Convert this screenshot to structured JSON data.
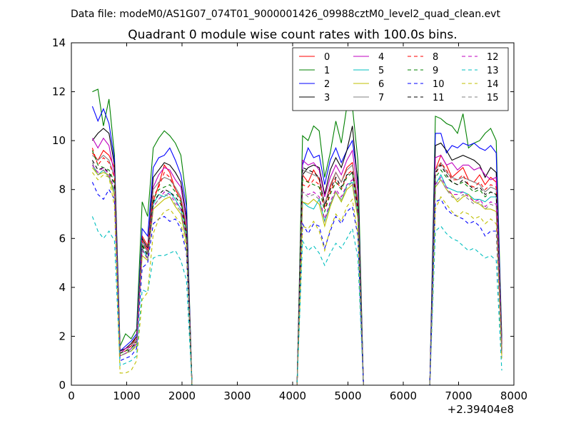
{
  "header": "Data file: modeM0/AS1G07_074T01_9000001426_09988cztM0_level2_quad_clean.evt",
  "chart_data": {
    "type": "line",
    "title": "Quadrant 0 module wise count rates with 100.0s bins.",
    "xlabel": "",
    "ylabel": "",
    "x_offset_label": "+2.39404e8",
    "xlim": [
      0,
      8000
    ],
    "ylim": [
      0,
      14
    ],
    "x_ticks": [
      0,
      1000,
      2000,
      3000,
      4000,
      5000,
      6000,
      7000,
      8000
    ],
    "x_tick_labels": [
      "0",
      "1000",
      "2000",
      "3000",
      "4000",
      "5000",
      "6000",
      "7000",
      "8000"
    ],
    "y_ticks": [
      0,
      2,
      4,
      6,
      8,
      10,
      12,
      14
    ],
    "y_tick_labels": [
      "0",
      "2",
      "4",
      "6",
      "8",
      "10",
      "12",
      "14"
    ],
    "grid": false,
    "legend_position": "top-right",
    "x": [
      380,
      480,
      580,
      680,
      780,
      880,
      980,
      1080,
      1180,
      1280,
      1380,
      1480,
      1580,
      1680,
      1780,
      1880,
      1980,
      2080,
      2180,
      2280,
      4080,
      4180,
      4280,
      4380,
      4480,
      4580,
      4680,
      4780,
      4880,
      4980,
      5080,
      5180,
      5280,
      5380,
      6480,
      6580,
      6680,
      6780,
      6880,
      6980,
      7080,
      7180,
      7280,
      7380,
      7480,
      7580,
      7680,
      7780
    ],
    "series": [
      {
        "name": "0",
        "color": "#ff0000",
        "dash": "solid",
        "values": [
          9.5,
          9.2,
          9.6,
          9.4,
          8.9,
          1.3,
          1.5,
          1.6,
          2.0,
          6.1,
          5.7,
          7.5,
          8.2,
          9.0,
          8.7,
          8.0,
          7.6,
          6.5,
          0,
          0,
          0,
          8.6,
          8.3,
          8.8,
          8.4,
          7.4,
          8.1,
          8.7,
          8.3,
          8.9,
          9.1,
          7.5,
          0,
          0,
          0,
          8.8,
          9.4,
          9.0,
          8.5,
          8.7,
          8.9,
          8.4,
          8.3,
          8.6,
          8.2,
          8.5,
          8.3,
          1.6
        ]
      },
      {
        "name": "1",
        "color": "#008000",
        "dash": "solid",
        "values": [
          12.0,
          12.1,
          10.6,
          11.7,
          9.4,
          1.6,
          2.1,
          1.9,
          2.3,
          7.5,
          6.9,
          9.7,
          10.1,
          10.4,
          10.2,
          9.9,
          9.4,
          7.6,
          0,
          0,
          0,
          10.2,
          10.0,
          10.6,
          10.4,
          8.5,
          9.5,
          10.8,
          9.9,
          11.4,
          11.4,
          9.2,
          0,
          0,
          0,
          11.0,
          10.9,
          10.7,
          10.6,
          10.3,
          11.1,
          9.7,
          9.9,
          10.0,
          10.3,
          10.5,
          10.0,
          2.0
        ]
      },
      {
        "name": "2",
        "color": "#0000ff",
        "dash": "solid",
        "values": [
          11.4,
          10.8,
          11.3,
          10.7,
          9.2,
          1.4,
          1.6,
          1.8,
          2.1,
          6.4,
          6.1,
          8.9,
          9.3,
          9.4,
          9.7,
          9.2,
          8.6,
          7.3,
          0,
          0,
          0,
          9.0,
          9.7,
          9.3,
          9.4,
          8.2,
          9.2,
          9.7,
          9.1,
          9.6,
          10.0,
          8.4,
          0,
          0,
          0,
          10.3,
          10.3,
          9.5,
          9.8,
          9.7,
          9.9,
          9.8,
          9.9,
          9.7,
          9.6,
          9.8,
          9.5,
          1.8
        ]
      },
      {
        "name": "3",
        "color": "#000000",
        "dash": "solid",
        "values": [
          10.0,
          10.3,
          10.5,
          10.3,
          9.0,
          1.4,
          1.5,
          1.7,
          2.0,
          6.0,
          5.6,
          8.5,
          8.8,
          9.1,
          9.0,
          8.7,
          8.3,
          6.9,
          0,
          0,
          0,
          8.6,
          8.9,
          9.0,
          8.9,
          7.8,
          8.8,
          9.3,
          8.9,
          9.6,
          10.6,
          8.2,
          0,
          0,
          0,
          9.8,
          9.9,
          9.6,
          9.2,
          9.3,
          9.4,
          9.3,
          9.2,
          9.0,
          8.5,
          8.9,
          8.7,
          1.7
        ]
      },
      {
        "name": "4",
        "color": "#bf00bf",
        "dash": "solid",
        "values": [
          10.1,
          9.7,
          10.1,
          9.8,
          8.6,
          1.3,
          1.5,
          1.6,
          1.9,
          5.9,
          5.5,
          8.1,
          8.6,
          8.9,
          8.8,
          8.4,
          8.1,
          6.7,
          0,
          0,
          0,
          9.2,
          9.0,
          9.1,
          8.8,
          7.7,
          8.5,
          9.0,
          8.6,
          9.2,
          9.6,
          7.9,
          0,
          0,
          0,
          9.3,
          9.4,
          9.0,
          9.1,
          8.8,
          9.0,
          9.0,
          8.8,
          8.9,
          8.6,
          8.4,
          8.5,
          1.6
        ]
      },
      {
        "name": "5",
        "color": "#00bfbf",
        "dash": "solid",
        "values": [
          9.0,
          8.6,
          8.8,
          8.5,
          7.9,
          1.2,
          1.3,
          1.4,
          1.7,
          5.6,
          5.2,
          7.4,
          7.8,
          7.7,
          7.9,
          7.6,
          7.2,
          6.0,
          0,
          0,
          0,
          7.5,
          7.3,
          7.2,
          7.6,
          6.7,
          7.4,
          7.9,
          7.5,
          8.2,
          8.3,
          7.0,
          0,
          0,
          0,
          8.2,
          8.6,
          8.1,
          8.0,
          7.9,
          7.9,
          7.8,
          7.6,
          7.6,
          7.5,
          7.7,
          7.7,
          1.3
        ]
      },
      {
        "name": "6",
        "color": "#bfbf00",
        "dash": "solid",
        "values": [
          8.9,
          8.6,
          8.7,
          8.6,
          7.7,
          1.2,
          1.3,
          1.4,
          1.6,
          5.3,
          5.1,
          7.2,
          7.4,
          7.6,
          7.7,
          7.3,
          7.0,
          5.8,
          0,
          0,
          0,
          7.5,
          7.4,
          7.6,
          7.4,
          6.5,
          7.3,
          7.9,
          7.5,
          8.0,
          8.2,
          6.8,
          0,
          0,
          0,
          8.1,
          8.4,
          8.0,
          7.8,
          7.5,
          7.7,
          7.8,
          7.5,
          7.4,
          7.2,
          7.2,
          7.1,
          1.2
        ]
      },
      {
        "name": "7",
        "color": "#808080",
        "dash": "solid",
        "values": [
          9.4,
          9.2,
          9.4,
          9.2,
          8.5,
          1.3,
          1.4,
          1.6,
          1.9,
          5.9,
          5.4,
          8.0,
          8.3,
          8.5,
          8.4,
          8.1,
          7.7,
          6.5,
          0,
          0,
          0,
          8.8,
          8.7,
          8.6,
          8.5,
          7.4,
          8.2,
          8.7,
          8.3,
          8.8,
          9.0,
          7.6,
          0,
          0,
          0,
          8.8,
          9.1,
          8.7,
          8.5,
          8.4,
          8.5,
          8.4,
          8.3,
          8.2,
          7.9,
          8.1,
          8.0,
          1.5
        ]
      },
      {
        "name": "8",
        "color": "#ff0000",
        "dash": "dashed",
        "values": [
          9.7,
          9.0,
          9.3,
          9.1,
          8.5,
          1.3,
          1.4,
          1.6,
          1.8,
          5.9,
          5.5,
          7.7,
          8.1,
          8.7,
          8.5,
          8.0,
          7.6,
          6.3,
          0,
          0,
          0,
          8.2,
          8.1,
          8.4,
          8.2,
          7.2,
          7.9,
          8.4,
          8.0,
          8.6,
          8.8,
          7.4,
          0,
          0,
          0,
          8.6,
          9.1,
          8.8,
          8.4,
          8.4,
          8.6,
          8.2,
          8.1,
          8.3,
          8.0,
          8.2,
          8.1,
          1.5
        ]
      },
      {
        "name": "9",
        "color": "#008000",
        "dash": "dashed",
        "values": [
          9.6,
          9.0,
          8.9,
          8.8,
          8.3,
          1.3,
          1.4,
          1.5,
          1.8,
          5.8,
          5.3,
          7.6,
          8.0,
          8.1,
          8.2,
          7.9,
          7.5,
          6.3,
          0,
          0,
          0,
          8.4,
          8.3,
          8.2,
          8.1,
          7.1,
          7.8,
          8.3,
          8.0,
          8.5,
          8.7,
          7.3,
          0,
          0,
          0,
          8.5,
          8.8,
          8.5,
          8.3,
          8.2,
          8.3,
          8.1,
          7.9,
          8.0,
          7.7,
          7.9,
          7.8,
          1.4
        ]
      },
      {
        "name": "10",
        "color": "#0000ff",
        "dash": "dashed",
        "values": [
          8.3,
          7.8,
          7.6,
          8.0,
          7.6,
          1.0,
          1.1,
          1.2,
          1.5,
          4.8,
          5.0,
          6.6,
          6.8,
          6.9,
          6.7,
          6.8,
          6.4,
          5.4,
          0,
          0,
          0,
          6.6,
          6.2,
          6.6,
          6.5,
          5.6,
          6.3,
          6.9,
          6.6,
          7.1,
          7.3,
          6.1,
          0,
          0,
          0,
          7.5,
          7.6,
          7.2,
          7.0,
          6.9,
          6.8,
          6.6,
          6.7,
          6.5,
          6.1,
          6.3,
          6.3,
          1.1
        ]
      },
      {
        "name": "11",
        "color": "#000000",
        "dash": "dashed",
        "values": [
          9.2,
          8.8,
          8.9,
          8.7,
          8.2,
          1.2,
          1.3,
          1.5,
          1.8,
          5.7,
          5.3,
          7.5,
          7.8,
          8.0,
          7.9,
          7.7,
          7.4,
          6.2,
          0,
          0,
          0,
          8.9,
          8.8,
          8.7,
          8.5,
          7.3,
          8.0,
          8.5,
          8.1,
          8.6,
          8.7,
          7.2,
          0,
          0,
          0,
          8.7,
          9.0,
          8.6,
          8.3,
          8.2,
          8.4,
          8.2,
          8.0,
          8.1,
          7.8,
          7.9,
          7.8,
          1.4
        ]
      },
      {
        "name": "12",
        "color": "#bf00bf",
        "dash": "dashed",
        "values": [
          9.0,
          8.7,
          8.9,
          8.6,
          8.0,
          1.2,
          1.3,
          1.5,
          1.7,
          5.5,
          5.2,
          7.3,
          7.6,
          7.9,
          7.8,
          7.5,
          7.2,
          6.0,
          0,
          0,
          0,
          7.9,
          7.8,
          7.9,
          7.7,
          6.8,
          7.5,
          8.0,
          7.7,
          8.2,
          8.4,
          7.0,
          0,
          0,
          0,
          8.2,
          8.5,
          8.1,
          7.8,
          7.8,
          7.9,
          7.7,
          7.5,
          7.6,
          7.3,
          7.5,
          7.4,
          1.3
        ]
      },
      {
        "name": "13",
        "color": "#00bfbf",
        "dash": "dashed",
        "values": [
          6.9,
          6.3,
          6.0,
          6.3,
          5.9,
          0.8,
          0.9,
          1.0,
          1.2,
          3.9,
          3.8,
          5.2,
          5.3,
          5.3,
          5.4,
          5.5,
          5.1,
          4.3,
          0,
          0,
          0,
          5.9,
          5.5,
          5.7,
          5.4,
          4.9,
          5.4,
          5.8,
          5.6,
          6.0,
          6.4,
          5.2,
          0,
          0,
          0,
          6.3,
          6.5,
          6.2,
          6.0,
          5.9,
          5.7,
          5.5,
          5.6,
          5.4,
          5.2,
          5.3,
          5.1,
          0.6
        ]
      },
      {
        "name": "14",
        "color": "#bfbf00",
        "dash": "dashed",
        "values": [
          8.7,
          8.4,
          8.6,
          8.5,
          7.3,
          0.5,
          0.5,
          0.6,
          1.0,
          3.5,
          3.8,
          6.2,
          6.8,
          7.1,
          7.2,
          6.9,
          6.6,
          5.6,
          0,
          0,
          0,
          6.5,
          6.4,
          6.7,
          6.3,
          5.5,
          6.4,
          7.0,
          6.7,
          7.3,
          7.6,
          6.2,
          0,
          0,
          0,
          7.2,
          7.7,
          7.4,
          7.1,
          6.9,
          7.1,
          7.0,
          6.8,
          6.9,
          6.6,
          6.8,
          6.6,
          1.1
        ]
      },
      {
        "name": "15",
        "color": "#808080",
        "dash": "dashed",
        "values": [
          9.1,
          8.6,
          8.8,
          8.5,
          8.0,
          1.2,
          1.3,
          1.4,
          1.7,
          5.6,
          5.1,
          7.3,
          7.6,
          7.8,
          7.7,
          7.4,
          7.1,
          5.9,
          0,
          0,
          0,
          7.9,
          7.7,
          7.8,
          7.6,
          6.7,
          7.4,
          7.9,
          7.6,
          8.1,
          8.3,
          6.9,
          0,
          0,
          0,
          8.1,
          8.4,
          8.0,
          7.7,
          7.6,
          7.8,
          7.6,
          7.4,
          7.5,
          7.2,
          7.4,
          7.3,
          1.3
        ]
      }
    ]
  }
}
